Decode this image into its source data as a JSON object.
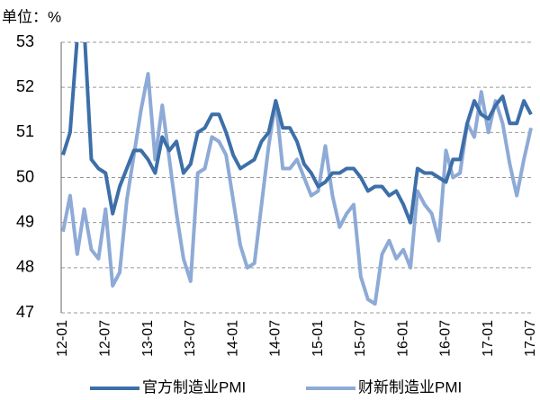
{
  "chart_data": {
    "type": "line",
    "ylabel": "单位：%",
    "categories": [
      "12-01",
      null,
      null,
      null,
      null,
      null,
      "12-07",
      null,
      null,
      null,
      null,
      null,
      "13-01",
      null,
      null,
      null,
      null,
      null,
      "13-07",
      null,
      null,
      null,
      null,
      null,
      "14-01",
      null,
      null,
      null,
      null,
      null,
      "14-07",
      null,
      null,
      null,
      null,
      null,
      "15-01",
      null,
      null,
      null,
      null,
      null,
      "15-07",
      null,
      null,
      null,
      null,
      null,
      "16-01",
      null,
      null,
      null,
      null,
      null,
      "16-07",
      null,
      null,
      null,
      null,
      null,
      "17-01",
      null,
      null,
      null,
      null,
      null,
      "17-07"
    ],
    "series": [
      {
        "name": "官方制造业PMI",
        "color": "#3d6fa8",
        "values": [
          50.5,
          51.0,
          53.1,
          53.3,
          50.4,
          50.2,
          50.1,
          49.2,
          49.8,
          50.2,
          50.6,
          50.6,
          50.4,
          50.1,
          50.9,
          50.6,
          50.8,
          50.1,
          50.3,
          51.0,
          51.1,
          51.4,
          51.4,
          51.0,
          50.5,
          50.2,
          50.3,
          50.4,
          50.8,
          51.0,
          51.7,
          51.1,
          51.1,
          50.8,
          50.3,
          50.1,
          49.8,
          49.9,
          50.1,
          50.1,
          50.2,
          50.2,
          50.0,
          49.7,
          49.8,
          49.8,
          49.6,
          49.7,
          49.4,
          49.0,
          50.2,
          50.1,
          50.1,
          50.0,
          49.9,
          50.4,
          50.4,
          51.2,
          51.7,
          51.4,
          51.3,
          51.6,
          51.8,
          51.2,
          51.2,
          51.7,
          51.4
        ]
      },
      {
        "name": "财新制造业PMI",
        "color": "#8eaad6",
        "values": [
          48.8,
          49.6,
          48.3,
          49.3,
          48.4,
          48.2,
          49.3,
          47.6,
          47.9,
          49.5,
          50.5,
          51.5,
          52.3,
          50.4,
          51.6,
          50.4,
          49.2,
          48.2,
          47.7,
          50.1,
          50.2,
          50.9,
          50.8,
          50.5,
          49.5,
          48.5,
          48.0,
          48.1,
          49.4,
          50.7,
          51.7,
          50.2,
          50.2,
          50.4,
          50.0,
          49.6,
          49.7,
          50.7,
          49.6,
          48.9,
          49.2,
          49.4,
          47.8,
          47.3,
          47.2,
          48.3,
          48.6,
          48.2,
          48.4,
          48.0,
          49.7,
          49.4,
          49.2,
          48.6,
          50.6,
          50.0,
          50.1,
          51.2,
          50.9,
          51.9,
          51.0,
          51.7,
          51.2,
          50.3,
          49.6,
          50.4,
          51.1
        ]
      }
    ],
    "ylim": [
      47,
      53
    ],
    "yticks": [
      47,
      48,
      49,
      50,
      51,
      52,
      53
    ],
    "grid": true
  }
}
